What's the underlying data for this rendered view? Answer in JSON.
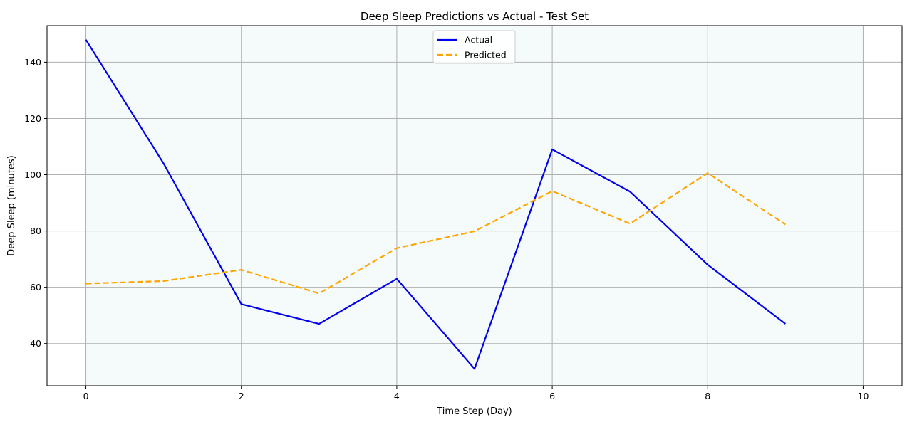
{
  "chart_data": {
    "type": "line",
    "title": "Deep Sleep Predictions vs Actual - Test Set",
    "xlabel": "Time Step (Day)",
    "ylabel": "Deep Sleep (minutes)",
    "xlim": [
      -0.5,
      10.5
    ],
    "ylim": [
      25,
      153
    ],
    "xticks": [
      0,
      2,
      4,
      6,
      8,
      10
    ],
    "yticks": [
      40,
      60,
      80,
      100,
      120,
      140
    ],
    "grid": true,
    "shaded_region": {
      "x_start": 0,
      "x_end": 10,
      "color": "#f5fafa"
    },
    "legend_position": "upper-center",
    "x": [
      0,
      1,
      2,
      3,
      4,
      5,
      6,
      7,
      8,
      9
    ],
    "series": [
      {
        "name": "Actual",
        "color": "#0000ee",
        "style": "solid",
        "values": [
          148,
          104,
          54,
          47,
          63,
          31,
          109,
          94,
          68,
          47
        ]
      },
      {
        "name": "Predicted",
        "color": "#ffa500",
        "style": "dashed",
        "values": [
          61.3,
          62.2,
          66.2,
          57.8,
          73.9,
          79.9,
          94.2,
          82.6,
          100.6,
          82.3
        ]
      }
    ]
  }
}
